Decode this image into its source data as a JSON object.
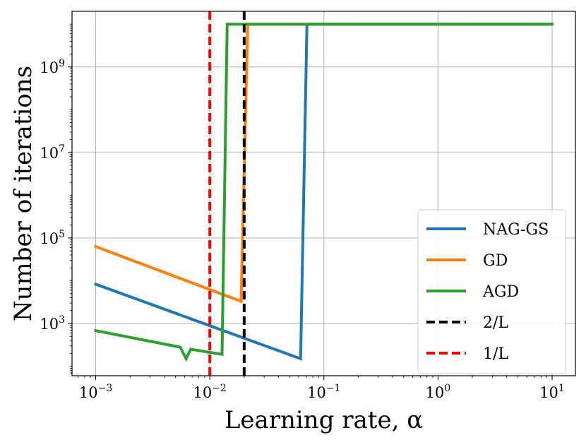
{
  "chart_data": {
    "type": "line",
    "xlabel": "Learning rate, α",
    "ylabel": "Number of iterations",
    "xscale": "log",
    "yscale": "log",
    "xlim": [
      0.00062,
      16.0
    ],
    "ylim": [
      60,
      20000000000
    ],
    "grid": true,
    "legend_placement": "lower-right",
    "x_ticks": [
      {
        "value": 0.001,
        "base": "10",
        "exp": "−3"
      },
      {
        "value": 0.01,
        "base": "10",
        "exp": "−2"
      },
      {
        "value": 0.1,
        "base": "10",
        "exp": "−1"
      },
      {
        "value": 1,
        "base": "10",
        "exp": "0"
      },
      {
        "value": 10,
        "base": "10",
        "exp": "1"
      }
    ],
    "y_ticks": [
      {
        "value": 1000,
        "base": "10",
        "exp": "3"
      },
      {
        "value": 100000,
        "base": "10",
        "exp": "5"
      },
      {
        "value": 10000000,
        "base": "10",
        "exp": "7"
      },
      {
        "value": 1000000000,
        "base": "10",
        "exp": "9"
      }
    ],
    "series": [
      {
        "name": "NAG-GS",
        "color": "#1f77b4",
        "style": "solid",
        "points": [
          [
            0.001,
            8300
          ],
          [
            0.0625,
            150
          ],
          [
            0.071,
            10000000000
          ],
          [
            10,
            10000000000
          ]
        ]
      },
      {
        "name": "GD",
        "color": "#ff7f0e",
        "style": "solid",
        "points": [
          [
            0.001,
            63000
          ],
          [
            0.0188,
            3300
          ],
          [
            0.0215,
            10000000000
          ],
          [
            10,
            10000000000
          ]
        ]
      },
      {
        "name": "AGD",
        "color": "#2ca02c",
        "style": "solid",
        "points": [
          [
            0.001,
            680
          ],
          [
            0.0055,
            280
          ],
          [
            0.0062,
            150
          ],
          [
            0.0068,
            250
          ],
          [
            0.0128,
            190
          ],
          [
            0.0142,
            10000000000
          ],
          [
            10,
            10000000000
          ]
        ]
      },
      {
        "name": "2/L",
        "color": "#000000",
        "style": "dashed",
        "vline": 0.02
      },
      {
        "name": "1/L",
        "color": "#ff0000",
        "style": "dashed",
        "vline": 0.01
      }
    ]
  }
}
